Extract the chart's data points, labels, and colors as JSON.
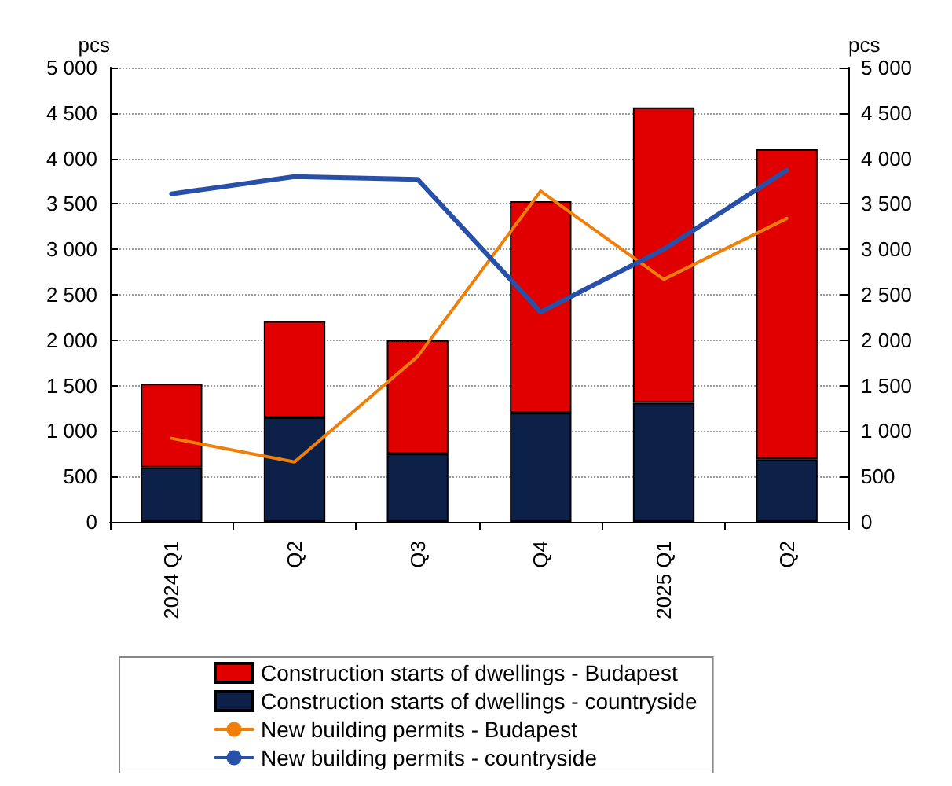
{
  "chart_data": {
    "type": "bar",
    "stacked": true,
    "ylabel": "pcs",
    "y2label": "pcs",
    "categories": [
      "2024 Q1",
      "Q2",
      "Q3",
      "Q4",
      "2025 Q1",
      "Q2"
    ],
    "series": [
      {
        "name": "Construction starts of dwellings - countryside",
        "color": "#0d2148",
        "values": [
          600,
          1150,
          750,
          1200,
          1310,
          690
        ]
      },
      {
        "name": "Construction starts of dwellings - Budapest",
        "color": "#e00000",
        "values": [
          920,
          1060,
          1250,
          2330,
          3250,
          3410
        ]
      },
      {
        "name": "New building permits - Budapest",
        "type": "line",
        "color": "#f07f09",
        "values": [
          920,
          660,
          1820,
          3640,
          2670,
          3340
        ]
      },
      {
        "name": "New building permits - countryside",
        "type": "line",
        "color": "#2850a8",
        "values": [
          3610,
          3800,
          3770,
          2310,
          3000,
          3870
        ]
      }
    ],
    "ylim": [
      0,
      5000
    ],
    "yticks": [
      0,
      500,
      {
        "value": 1000,
        "label": "1 000"
      },
      {
        "value": 1500,
        "label": "1 500"
      },
      {
        "value": 2000,
        "label": "2 000"
      },
      {
        "value": 2500,
        "label": "2 500"
      },
      {
        "value": 3000,
        "label": "3 000"
      },
      {
        "value": 3500,
        "label": "3 500"
      },
      {
        "value": 4000,
        "label": "4 000"
      },
      {
        "value": 4500,
        "label": "4 500"
      },
      {
        "value": 5000,
        "label": "5 000"
      }
    ],
    "y2lim": [
      0,
      5000
    ],
    "y2ticks": [
      0,
      500,
      {
        "value": 1000,
        "label": "1 000"
      },
      {
        "value": 1500,
        "label": "1 500"
      },
      {
        "value": 2000,
        "label": "2 000"
      },
      {
        "value": 2500,
        "label": "2 500"
      },
      {
        "value": 3000,
        "label": "3 000"
      },
      {
        "value": 3500,
        "label": "3 500"
      },
      {
        "value": 4000,
        "label": "4 000"
      },
      {
        "value": 4500,
        "label": "4 500"
      },
      {
        "value": 5000,
        "label": "5 000"
      }
    ],
    "grid": "y",
    "legend": "bottom",
    "marker": "none",
    "line_style": "solid"
  }
}
